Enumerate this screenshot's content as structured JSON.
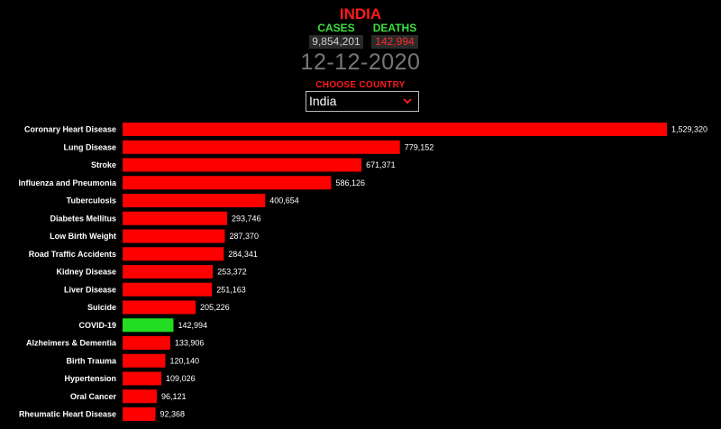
{
  "header": {
    "country": "INDIA",
    "cases_label": "CASES",
    "cases_value": "9,854,201",
    "deaths_label": "DEATHS",
    "deaths_value": "142,994",
    "date": "12-12-2020",
    "choose_label": "CHOOSE COUNTRY",
    "selected_country": "India"
  },
  "colors": {
    "bar": "#ff0000",
    "highlight": "#22dd22",
    "background": "#000000"
  },
  "chart_data": {
    "type": "bar",
    "orientation": "horizontal",
    "highlight_category": "COVID-19",
    "categories": [
      "Coronary Heart Disease",
      "Lung Disease",
      "Stroke",
      "Influenza and Pneumonia",
      "Tuberculosis",
      "Diabetes Mellitus",
      "Low Birth Weight",
      "Road Traffic Accidents",
      "Kidney Disease",
      "Liver Disease",
      "Suicide",
      "COVID-19",
      "Alzheimers & Dementia",
      "Birth Trauma",
      "Hypertension",
      "Oral Cancer",
      "Rheumatic Heart Disease"
    ],
    "values": [
      1529320,
      779152,
      671371,
      586126,
      400654,
      293746,
      287370,
      284341,
      253372,
      251163,
      205226,
      142994,
      133906,
      120140,
      109026,
      96121,
      92368
    ],
    "value_labels": [
      "1,529,320",
      "779,152",
      "671,371",
      "586,126",
      "400,654",
      "293,746",
      "287,370",
      "284,341",
      "253,372",
      "251,163",
      "205,226",
      "142,994",
      "133,906",
      "120,140",
      "109,026",
      "96,121",
      "92,368"
    ],
    "xlim": [
      0,
      1529320
    ]
  }
}
